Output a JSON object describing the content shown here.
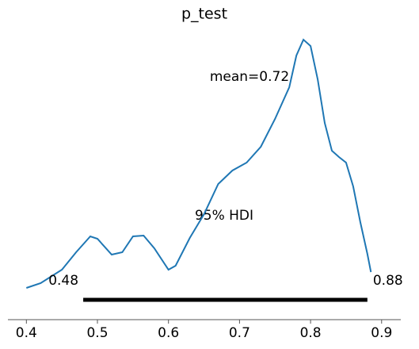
{
  "chart_data": {
    "type": "line",
    "title": "p_test",
    "x": [
      0.4,
      0.42,
      0.45,
      0.47,
      0.49,
      0.5,
      0.52,
      0.535,
      0.55,
      0.565,
      0.58,
      0.6,
      0.61,
      0.63,
      0.65,
      0.67,
      0.69,
      0.71,
      0.73,
      0.75,
      0.77,
      0.78,
      0.79,
      0.8,
      0.81,
      0.82,
      0.83,
      0.84,
      0.85,
      0.86,
      0.87,
      0.88,
      0.885
    ],
    "values": [
      0.15,
      0.21,
      0.38,
      0.6,
      0.8,
      0.77,
      0.57,
      0.6,
      0.8,
      0.81,
      0.65,
      0.38,
      0.43,
      0.78,
      1.08,
      1.46,
      1.63,
      1.73,
      1.93,
      2.28,
      2.68,
      3.08,
      3.28,
      3.2,
      2.78,
      2.23,
      1.88,
      1.8,
      1.73,
      1.43,
      0.98,
      0.58,
      0.35
    ],
    "color": "#1f77b4",
    "xlim": [
      0.374,
      0.927
    ],
    "xticks": [
      0.4,
      0.5,
      0.6,
      0.7,
      0.8,
      0.9
    ],
    "ylim": [
      0,
      3.63
    ],
    "mean_text": "mean=0.72",
    "hdi_label": "95% HDI",
    "hdi": [
      0.48,
      0.88
    ]
  }
}
